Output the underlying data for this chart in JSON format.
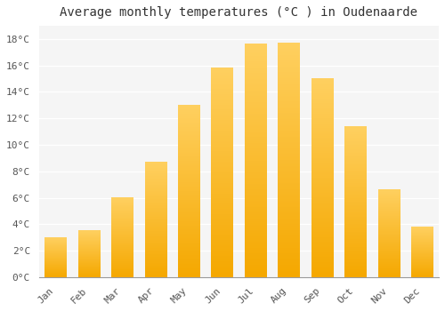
{
  "title": "Average monthly temperatures (°C ) in Oudenaarde",
  "months": [
    "Jan",
    "Feb",
    "Mar",
    "Apr",
    "May",
    "Jun",
    "Jul",
    "Aug",
    "Sep",
    "Oct",
    "Nov",
    "Dec"
  ],
  "values": [
    3.0,
    3.5,
    6.0,
    8.7,
    13.0,
    15.8,
    17.6,
    17.7,
    15.0,
    11.4,
    6.6,
    3.8
  ],
  "bar_color": "#FFC020",
  "bar_color_bottom": "#F5A800",
  "bar_color_top": "#FFD060",
  "ylim": [
    0,
    19
  ],
  "yticks": [
    0,
    2,
    4,
    6,
    8,
    10,
    12,
    14,
    16,
    18
  ],
  "ytick_labels": [
    "0°C",
    "2°C",
    "4°C",
    "6°C",
    "8°C",
    "10°C",
    "12°C",
    "14°C",
    "16°C",
    "18°C"
  ],
  "background_color": "#FFFFFF",
  "plot_bg_color": "#F5F5F5",
  "grid_color": "#FFFFFF",
  "title_fontsize": 10,
  "tick_fontsize": 8,
  "bar_width": 0.65
}
